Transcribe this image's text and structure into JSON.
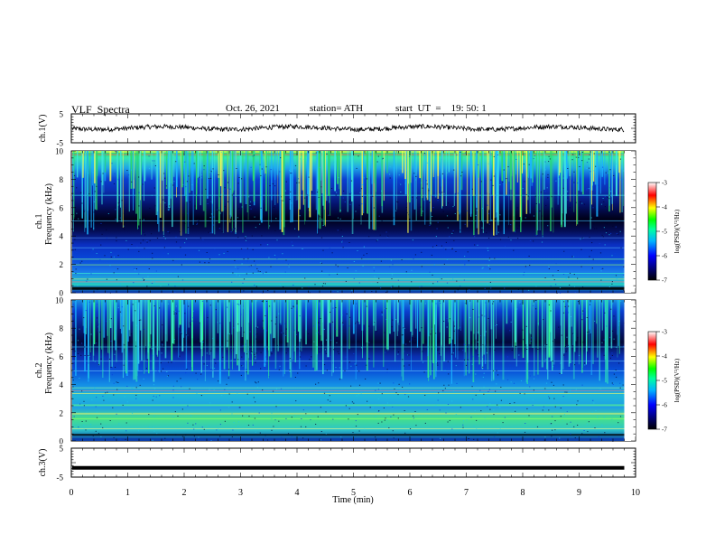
{
  "header": {
    "title": "VLF  Spectra",
    "date": "Oct. 26, 2021",
    "station": "station= ATH",
    "start": "start  UT  =    19: 50: 1"
  },
  "chart_data": [
    {
      "type": "line",
      "panel": "ch1-waveform",
      "ylabel": "ch.1(V)",
      "yticks": [
        "5",
        "-5"
      ],
      "ylim": [
        -5,
        5
      ],
      "xlim": [
        0,
        10
      ],
      "trace_end_min": 9.8,
      "mean_level_v": 0.1
    },
    {
      "type": "heatmap",
      "panel": "ch1-spectrogram",
      "ylabel_line1": "ch.1",
      "ylabel_line2": "Frequency (kHz)",
      "ylim": [
        0,
        10
      ],
      "yticks": [
        "0",
        "2",
        "4",
        "6",
        "8",
        "10"
      ],
      "xlim": [
        0,
        10
      ],
      "data_end_min": 9.8,
      "colorbar": {
        "label": "log(PSD)(V²/Hz)",
        "ticks": [
          "-3",
          "-4",
          "-5",
          "-6",
          "-7"
        ],
        "range": [
          -7,
          -3
        ]
      }
    },
    {
      "type": "heatmap",
      "panel": "ch2-spectrogram",
      "ylabel_line1": "ch.2",
      "ylabel_line2": "Frequency (kHz)",
      "ylim": [
        0,
        10
      ],
      "yticks": [
        "0",
        "2",
        "4",
        "6",
        "8",
        "10"
      ],
      "xlim": [
        0,
        10
      ],
      "data_end_min": 9.8,
      "colorbar": {
        "label": "log(PSD)(V²/Hz)",
        "ticks": [
          "-3",
          "-4",
          "-5",
          "-6",
          "-7"
        ],
        "range": [
          -7,
          -3
        ]
      }
    },
    {
      "type": "line",
      "panel": "ch3-waveform",
      "ylabel": "ch.3(V)",
      "yticks": [
        "5",
        "-5"
      ],
      "ylim": [
        -5,
        5
      ],
      "xlim": [
        0,
        10
      ],
      "trace_end_min": 9.8,
      "mean_level_v": -1.8
    }
  ],
  "x_axis": {
    "label": "Time  (min)",
    "ticks": [
      "0",
      "1",
      "2",
      "3",
      "4",
      "5",
      "6",
      "7",
      "8",
      "9",
      "10"
    ]
  },
  "colors": {
    "background": "#ffffff",
    "axis": "#000000",
    "low_psd": "#000000",
    "high_psd": "#ff0000"
  }
}
